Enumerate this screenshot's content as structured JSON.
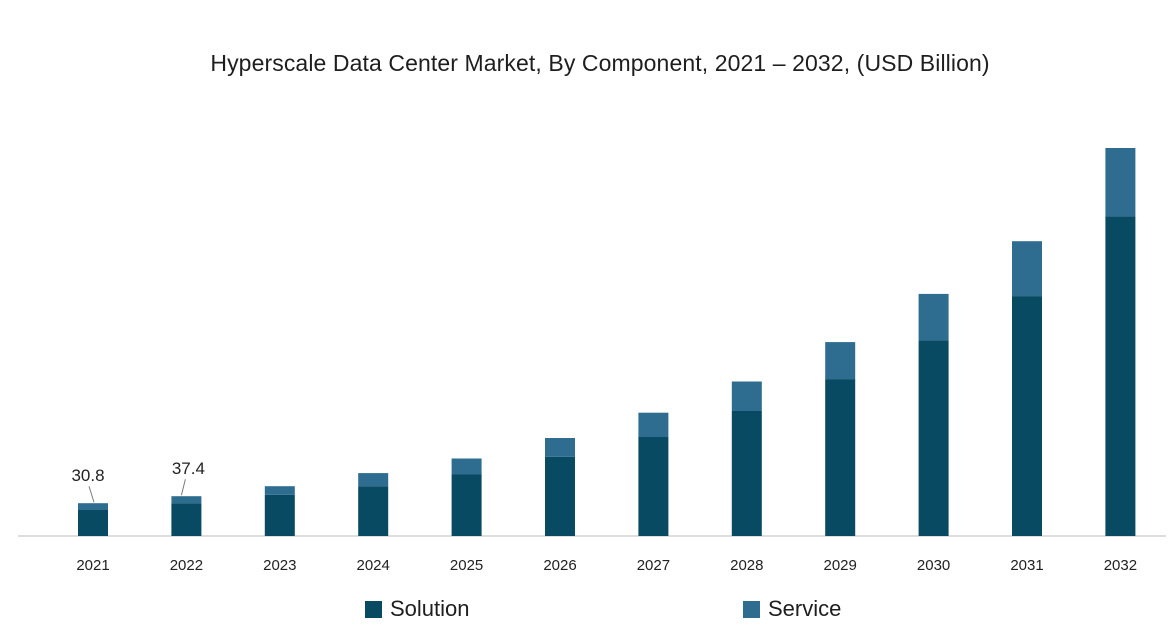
{
  "chart_data": {
    "type": "bar",
    "stacked": true,
    "title": "Hyperscale Data Center Market, By Component, 2021 – 2032, (USD Billion)",
    "xlabel": "",
    "ylabel": "",
    "categories": [
      "2021",
      "2022",
      "2023",
      "2024",
      "2025",
      "2026",
      "2027",
      "2028",
      "2029",
      "2030",
      "2031",
      "2032"
    ],
    "series": [
      {
        "name": "Solution",
        "color": "#084a62",
        "values": [
          24.4,
          30.6,
          38.7,
          46.8,
          58.2,
          74.4,
          93.1,
          117.5,
          147.4,
          184.0,
          225.4,
          300.3
        ]
      },
      {
        "name": "Service",
        "color": "#2e6d90",
        "values": [
          6.4,
          6.8,
          8.1,
          12.3,
          14.6,
          17.7,
          22.8,
          27.7,
          34.8,
          43.5,
          51.6,
          64.3
        ]
      }
    ],
    "data_labels": [
      {
        "category": "2021",
        "text": "30.8"
      },
      {
        "category": "2022",
        "text": "37.4"
      }
    ],
    "ylim": [
      0,
      364.6
    ],
    "grid": false,
    "legend_position": "bottom"
  }
}
